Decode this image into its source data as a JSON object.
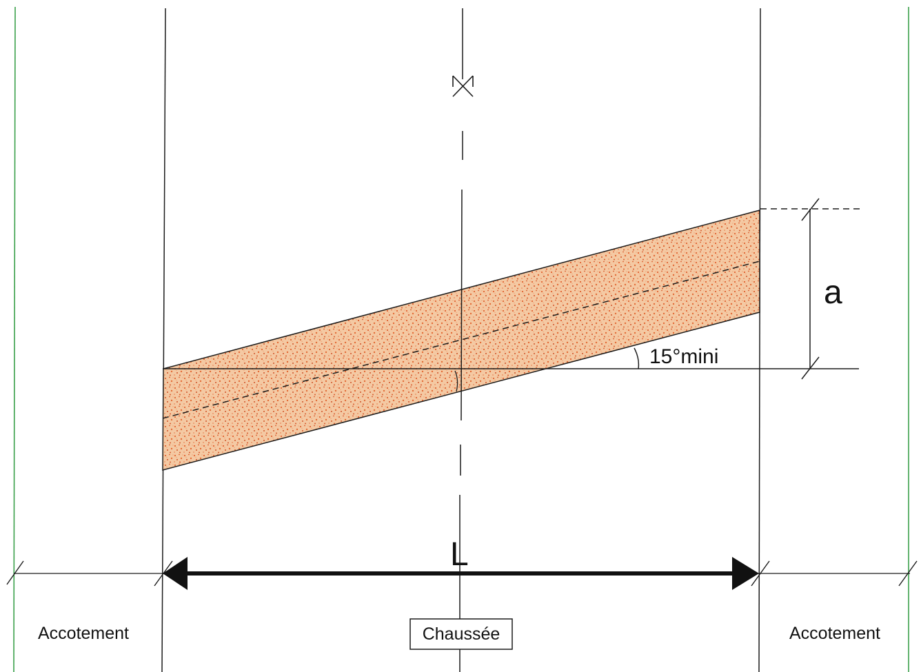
{
  "labels": {
    "dimension_a": "a",
    "angle": "15°mini",
    "length": "L",
    "left_zone": "Accotement",
    "center_zone": "Chaussée",
    "right_zone": "Accotement"
  },
  "colors": {
    "line": "#1a1a1a",
    "shoulder_edge": "#3aa04a",
    "band_fill": "#f2c29a",
    "band_texture": "#e0602e"
  }
}
